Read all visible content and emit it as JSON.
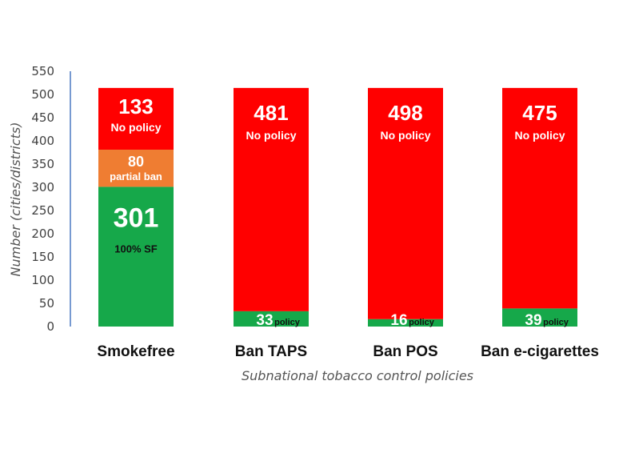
{
  "chart_data": {
    "type": "bar",
    "stacked": true,
    "categories": [
      "Smokefree",
      "Ban TAPS",
      "Ban POS",
      "Ban e-cigarettes"
    ],
    "series": [
      {
        "values": [
          301,
          33,
          16,
          39
        ],
        "labels": [
          "100% SF",
          "policy",
          "policy",
          "policy"
        ],
        "color": "#16a84a"
      },
      {
        "values": [
          80,
          0,
          0,
          0
        ],
        "labels": [
          "partial ban",
          "",
          "",
          ""
        ],
        "color": "#ef7d32"
      },
      {
        "values": [
          133,
          481,
          498,
          475
        ],
        "labels": [
          "No policy",
          "No policy",
          "No policy",
          "No policy"
        ],
        "color": "#ff0000"
      }
    ],
    "xlabel": "Subnational tobacco control policies",
    "ylabel": "Number (cities/districts)",
    "yticks": [
      0,
      50,
      100,
      150,
      200,
      250,
      300,
      350,
      400,
      450,
      500,
      550
    ],
    "ylim": [
      0,
      550
    ],
    "grid": false,
    "legend": "none"
  }
}
